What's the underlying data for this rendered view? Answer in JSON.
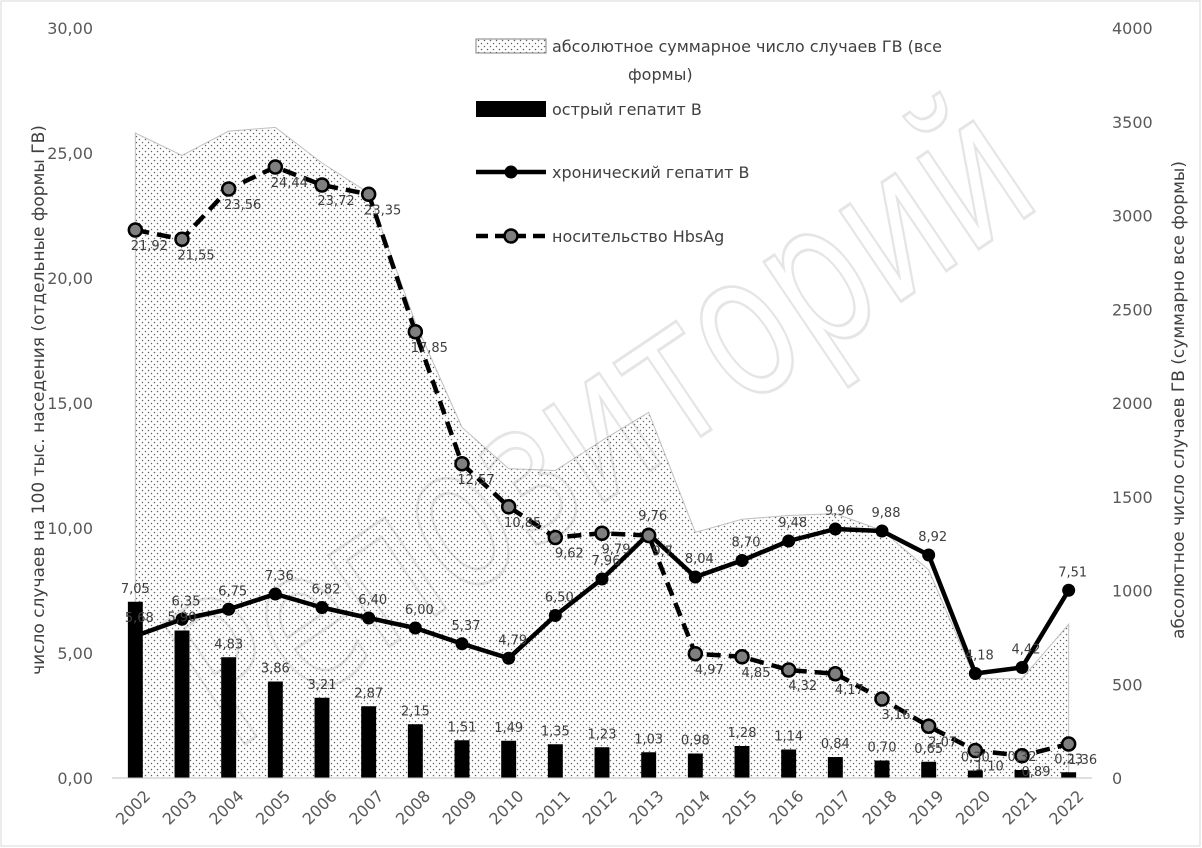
{
  "chart_data": {
    "type": "bar",
    "title": "",
    "categories": [
      "2002",
      "2003",
      "2004",
      "2005",
      "2006",
      "2007",
      "2008",
      "2009",
      "2010",
      "2011",
      "2012",
      "2013",
      "2014",
      "2015",
      "2016",
      "2017",
      "2018",
      "2019",
      "2020",
      "2021",
      "2022"
    ],
    "ylabel_left": "число случаев на 100 тыс. наседения (отдельные формы ГВ)",
    "ylabel_right": "абсолютное число случаев ГВ (суммарно все формы)",
    "ylim_left": [
      0,
      30
    ],
    "ylim_right": [
      0,
      4000
    ],
    "yticks_left": [
      "0,00",
      "5,00",
      "10,00",
      "15,00",
      "20,00",
      "25,00",
      "30,00"
    ],
    "yticks_right": [
      "0",
      "500",
      "1000",
      "1500",
      "2000",
      "2500",
      "3000",
      "3500",
      "4000"
    ],
    "legend_position": "top-center",
    "grid": false,
    "series": [
      {
        "name": "абсолютное суммарное число случаев ГВ (все формы)",
        "type": "area",
        "axis": "right",
        "values": [
          3440,
          3320,
          3450,
          3470,
          3280,
          3120,
          2430,
          1870,
          1650,
          1640,
          1800,
          1950,
          1310,
          1380,
          1400,
          1410,
          1320,
          1110,
          530,
          530,
          820
        ]
      },
      {
        "name": "острый гепатит В",
        "type": "bar",
        "axis": "left",
        "values": [
          7.05,
          5.9,
          4.83,
          3.86,
          3.21,
          2.87,
          2.15,
          1.51,
          1.49,
          1.35,
          1.23,
          1.03,
          0.98,
          1.28,
          1.14,
          0.84,
          0.7,
          0.65,
          0.3,
          0.32,
          0.23
        ],
        "labels": [
          "7,05",
          "5,90",
          "4,83",
          "3,86",
          "3,21",
          "2,87",
          "2,15",
          "1,51",
          "1,49",
          "1,35",
          "1,23",
          "1,03",
          "0,98",
          "1,28",
          "1,14",
          "0,84",
          "0,70",
          "0,65",
          "0,30",
          "0,32",
          "0,23"
        ]
      },
      {
        "name": "хронический гепатит В",
        "type": "line",
        "axis": "left",
        "values": [
          5.68,
          6.35,
          6.75,
          7.36,
          6.82,
          6.4,
          6.0,
          5.37,
          4.79,
          6.5,
          7.96,
          9.76,
          8.04,
          8.7,
          9.48,
          9.96,
          9.88,
          8.92,
          4.18,
          4.42,
          7.51
        ],
        "labels": [
          "5,68",
          "6,35",
          "6,75",
          "7,36",
          "6,82",
          "6,40",
          "6,00",
          "5,37",
          "4,79",
          "6,50",
          "7,96",
          "9,76",
          "8,04",
          "8,70",
          "9,48",
          "9,96",
          "9,88",
          "8,92",
          "4,18",
          "4,42",
          "7,51"
        ]
      },
      {
        "name": "носительство HbsAg",
        "type": "line-dashed",
        "axis": "left",
        "values": [
          21.92,
          21.55,
          23.56,
          24.44,
          23.72,
          23.35,
          17.85,
          12.57,
          10.85,
          9.62,
          9.79,
          9.7,
          4.97,
          4.85,
          4.32,
          4.17,
          3.16,
          2.07,
          1.1,
          0.89,
          1.36
        ],
        "labels": [
          "21,92",
          "21,55",
          "23,56",
          "24,44",
          "23,72",
          "23,35",
          "17,85",
          "12,57",
          "10,85",
          "9,62",
          "9,79",
          "9,7",
          "4,97",
          "4,85",
          "4,32",
          "4,17",
          "3,16",
          "2,07",
          "1,10",
          "0,89",
          "1,36"
        ]
      }
    ]
  },
  "watermark": {
    "text": "Репозиторий",
    "color": "rgba(0,0,0,0.10)"
  },
  "colors": {
    "bar": "#000000",
    "line": "#000000",
    "area_outline": "#bfbfbf",
    "dot": "#7f7f7f",
    "axis": "#bfbfbf"
  }
}
